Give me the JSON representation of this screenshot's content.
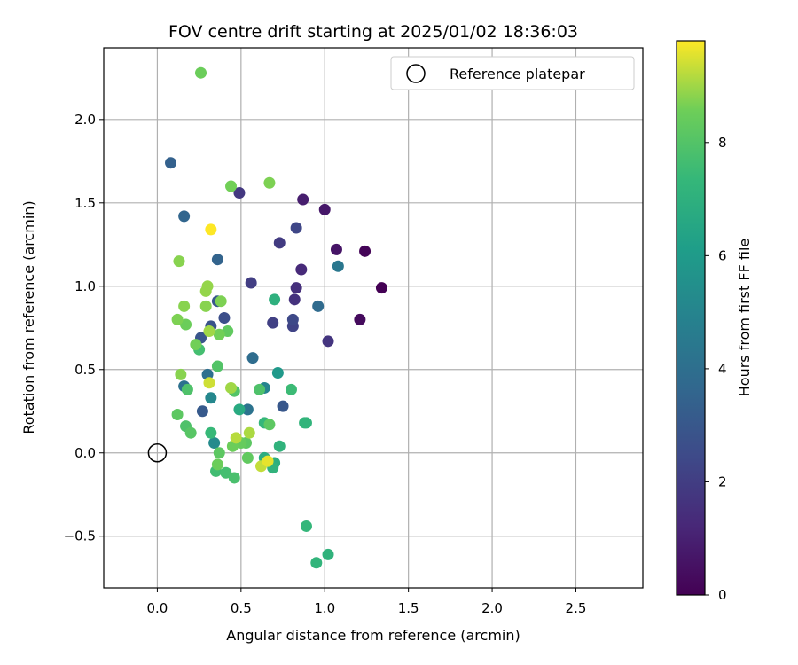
{
  "chart_data": {
    "type": "scatter",
    "title": "FOV centre drift starting at 2025/01/02 18:36:03",
    "xlabel": "Angular distance from reference (arcmin)",
    "ylabel": "Rotation from reference (arcmin)",
    "xlim": [
      -0.32,
      2.9
    ],
    "ylim": [
      -0.81,
      2.43
    ],
    "xticks": [
      0.0,
      0.5,
      1.0,
      1.5,
      2.0,
      2.5
    ],
    "xtick_labels": [
      "0.0",
      "0.5",
      "1.0",
      "1.5",
      "2.0",
      "2.5"
    ],
    "yticks": [
      -0.5,
      0.0,
      0.5,
      1.0,
      1.5,
      2.0
    ],
    "ytick_labels": [
      "−0.5",
      "0.0",
      "0.5",
      "1.0",
      "1.5",
      "2.0"
    ],
    "grid": true,
    "legend": {
      "placement": "upper-right",
      "entries": [
        "Reference platepar"
      ]
    },
    "reference_point": {
      "x": 0.0,
      "y": 0.0
    },
    "colorbar": {
      "label": "Hours from first FF file",
      "colormap": "viridis",
      "range": [
        0,
        9.8
      ],
      "ticks": [
        0,
        2,
        4,
        6,
        8
      ],
      "tick_labels": [
        "0",
        "2",
        "4",
        "6",
        "8"
      ]
    },
    "points": [
      {
        "x": 1.34,
        "y": 0.99,
        "t": 0.0
      },
      {
        "x": 1.24,
        "y": 1.21,
        "t": 0.1
      },
      {
        "x": 1.21,
        "y": 0.8,
        "t": 0.3
      },
      {
        "x": 1.07,
        "y": 1.22,
        "t": 0.6
      },
      {
        "x": 1.0,
        "y": 1.46,
        "t": 0.7
      },
      {
        "x": 0.87,
        "y": 1.52,
        "t": 0.9
      },
      {
        "x": 0.86,
        "y": 1.1,
        "t": 1.3
      },
      {
        "x": 0.83,
        "y": 0.99,
        "t": 1.5
      },
      {
        "x": 0.82,
        "y": 0.92,
        "t": 1.6
      },
      {
        "x": 1.02,
        "y": 0.67,
        "t": 1.7
      },
      {
        "x": 0.49,
        "y": 1.56,
        "t": 1.8
      },
      {
        "x": 0.73,
        "y": 1.26,
        "t": 1.9
      },
      {
        "x": 0.56,
        "y": 1.02,
        "t": 2.0
      },
      {
        "x": 0.69,
        "y": 0.78,
        "t": 2.1
      },
      {
        "x": 0.81,
        "y": 0.76,
        "t": 2.2
      },
      {
        "x": 0.83,
        "y": 1.35,
        "t": 2.3
      },
      {
        "x": 0.81,
        "y": 0.8,
        "t": 2.4
      },
      {
        "x": 0.4,
        "y": 0.81,
        "t": 2.6
      },
      {
        "x": 0.32,
        "y": 0.76,
        "t": 2.8
      },
      {
        "x": 0.26,
        "y": 0.69,
        "t": 2.9
      },
      {
        "x": 0.36,
        "y": 0.91,
        "t": 3.0
      },
      {
        "x": 0.75,
        "y": 0.28,
        "t": 3.0
      },
      {
        "x": 0.27,
        "y": 0.25,
        "t": 3.1
      },
      {
        "x": 0.08,
        "y": 1.74,
        "t": 3.4
      },
      {
        "x": 0.36,
        "y": 1.16,
        "t": 3.5
      },
      {
        "x": 0.16,
        "y": 1.42,
        "t": 3.6
      },
      {
        "x": 0.96,
        "y": 0.88,
        "t": 3.8
      },
      {
        "x": 0.57,
        "y": 0.57,
        "t": 3.9
      },
      {
        "x": 0.3,
        "y": 0.47,
        "t": 4.0
      },
      {
        "x": 0.16,
        "y": 0.4,
        "t": 4.1
      },
      {
        "x": 0.54,
        "y": 0.26,
        "t": 4.2
      },
      {
        "x": 1.08,
        "y": 1.12,
        "t": 4.4
      },
      {
        "x": 0.64,
        "y": 0.39,
        "t": 5.0
      },
      {
        "x": 0.32,
        "y": 0.33,
        "t": 5.1
      },
      {
        "x": 0.34,
        "y": 0.06,
        "t": 5.3
      },
      {
        "x": 0.72,
        "y": 0.48,
        "t": 5.9
      },
      {
        "x": 0.49,
        "y": 0.26,
        "t": 6.7
      },
      {
        "x": 0.64,
        "y": -0.03,
        "t": 6.8
      },
      {
        "x": 0.7,
        "y": -0.06,
        "t": 6.9
      },
      {
        "x": 0.7,
        "y": 0.92,
        "t": 7.0
      },
      {
        "x": 0.73,
        "y": 0.04,
        "t": 7.1
      },
      {
        "x": 0.88,
        "y": 0.18,
        "t": 7.2
      },
      {
        "x": 0.64,
        "y": 0.18,
        "t": 7.3
      },
      {
        "x": 0.89,
        "y": 0.18,
        "t": 7.2
      },
      {
        "x": 0.69,
        "y": -0.09,
        "t": 7.1
      },
      {
        "x": 0.89,
        "y": -0.44,
        "t": 7.3
      },
      {
        "x": 0.95,
        "y": -0.66,
        "t": 7.2
      },
      {
        "x": 1.02,
        "y": -0.61,
        "t": 7.1
      },
      {
        "x": 0.32,
        "y": 0.12,
        "t": 7.4
      },
      {
        "x": 0.35,
        "y": -0.11,
        "t": 7.6
      },
      {
        "x": 0.41,
        "y": -0.12,
        "t": 7.7
      },
      {
        "x": 0.46,
        "y": -0.15,
        "t": 7.8
      },
      {
        "x": 0.8,
        "y": 0.38,
        "t": 7.5
      },
      {
        "x": 0.61,
        "y": 0.38,
        "t": 7.9
      },
      {
        "x": 0.46,
        "y": 0.37,
        "t": 8.0
      },
      {
        "x": 0.18,
        "y": 0.38,
        "t": 7.9
      },
      {
        "x": 0.25,
        "y": 0.62,
        "t": 7.7
      },
      {
        "x": 0.36,
        "y": 0.52,
        "t": 8.0
      },
      {
        "x": 0.17,
        "y": 0.16,
        "t": 7.9
      },
      {
        "x": 0.2,
        "y": 0.12,
        "t": 8.1
      },
      {
        "x": 0.12,
        "y": 0.23,
        "t": 8.2
      },
      {
        "x": 0.37,
        "y": 0.0,
        "t": 8.2
      },
      {
        "x": 0.53,
        "y": 0.06,
        "t": 8.2
      },
      {
        "x": 0.54,
        "y": -0.03,
        "t": 8.3
      },
      {
        "x": 0.67,
        "y": 0.17,
        "t": 8.2
      },
      {
        "x": 0.5,
        "y": 0.06,
        "t": 8.4
      },
      {
        "x": 0.45,
        "y": 0.04,
        "t": 8.5
      },
      {
        "x": 0.36,
        "y": -0.07,
        "t": 8.5
      },
      {
        "x": 0.42,
        "y": 0.73,
        "t": 8.3
      },
      {
        "x": 0.37,
        "y": 0.71,
        "t": 8.6
      },
      {
        "x": 0.23,
        "y": 0.65,
        "t": 8.6
      },
      {
        "x": 0.17,
        "y": 0.77,
        "t": 8.5
      },
      {
        "x": 0.12,
        "y": 0.8,
        "t": 8.7
      },
      {
        "x": 0.16,
        "y": 0.88,
        "t": 8.8
      },
      {
        "x": 0.29,
        "y": 0.88,
        "t": 8.8
      },
      {
        "x": 0.38,
        "y": 0.91,
        "t": 8.7
      },
      {
        "x": 0.29,
        "y": 0.97,
        "t": 8.9
      },
      {
        "x": 0.3,
        "y": 1.0,
        "t": 8.9
      },
      {
        "x": 0.13,
        "y": 1.15,
        "t": 8.8
      },
      {
        "x": 0.44,
        "y": 1.6,
        "t": 8.6
      },
      {
        "x": 0.67,
        "y": 1.62,
        "t": 8.7
      },
      {
        "x": 0.26,
        "y": 2.28,
        "t": 8.5
      },
      {
        "x": 0.14,
        "y": 0.47,
        "t": 8.8
      },
      {
        "x": 0.44,
        "y": 0.39,
        "t": 9.0
      },
      {
        "x": 0.55,
        "y": 0.12,
        "t": 9.1
      },
      {
        "x": 0.47,
        "y": 0.09,
        "t": 9.2
      },
      {
        "x": 0.31,
        "y": 0.73,
        "t": 9.0
      },
      {
        "x": 0.31,
        "y": 0.42,
        "t": 9.4
      },
      {
        "x": 0.62,
        "y": -0.08,
        "t": 9.3
      },
      {
        "x": 0.66,
        "y": -0.05,
        "t": 9.6
      },
      {
        "x": 0.32,
        "y": 1.34,
        "t": 9.8
      }
    ]
  }
}
